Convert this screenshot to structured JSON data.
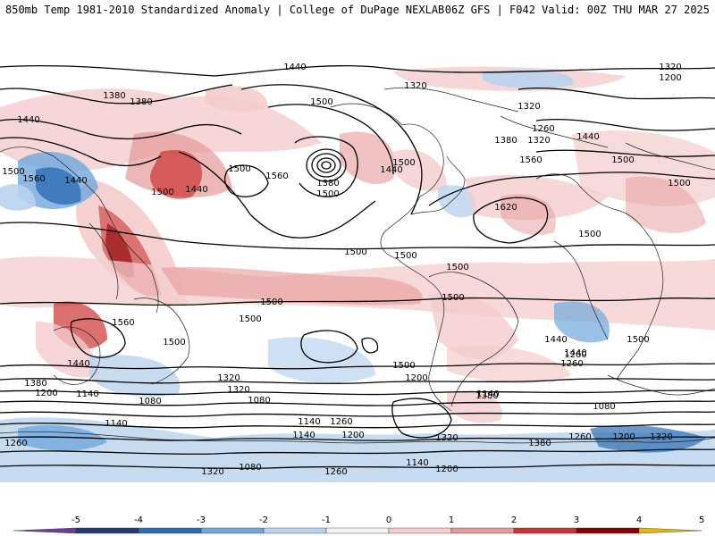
{
  "header": {
    "title_left": "850mb Temp 1981-2010 Standardized Anomaly | College of DuPage NEXLAB",
    "title_right": "06Z GFS | F042 Valid: 00Z THU MAR 27 2025"
  },
  "colorbar": {
    "ticks": [
      "-5",
      "-4",
      "-3",
      "-2",
      "-1",
      "0",
      "1",
      "2",
      "3",
      "4",
      "5"
    ],
    "colors": [
      "#6a3d9a",
      "#1f3b73",
      "#2e6db4",
      "#6fa8dc",
      "#b9d3ee",
      "#f2f2f2",
      "#f4cccc",
      "#e69999",
      "#cc3333",
      "#8b0000",
      "#e6b800"
    ]
  },
  "contour_labels": [
    "1440",
    "1380",
    "1380",
    "1440",
    "1500",
    "1560",
    "1440",
    "1500",
    "1500",
    "1440",
    "1500",
    "1560",
    "1380",
    "1500",
    "1440",
    "1500",
    "1320",
    "1320",
    "1200",
    "1320",
    "1260",
    "1380",
    "1320",
    "1440",
    "1560",
    "1500",
    "1620",
    "1500",
    "1500",
    "1500",
    "1500",
    "1500",
    "1500",
    "1500",
    "1500",
    "1560",
    "1500",
    "1500",
    "1440",
    "1500",
    "1440",
    "1380",
    "1320",
    "1200",
    "1260",
    "1320",
    "1200",
    "1260",
    "1080",
    "1140",
    "1140",
    "1080",
    "1140",
    "1260",
    "1380",
    "1140",
    "1200",
    "1320",
    "1380",
    "1260",
    "1200",
    "1320",
    "1260",
    "1140",
    "1080",
    "1440",
    "1320",
    "1260",
    "1140",
    "1080",
    "1200"
  ]
}
